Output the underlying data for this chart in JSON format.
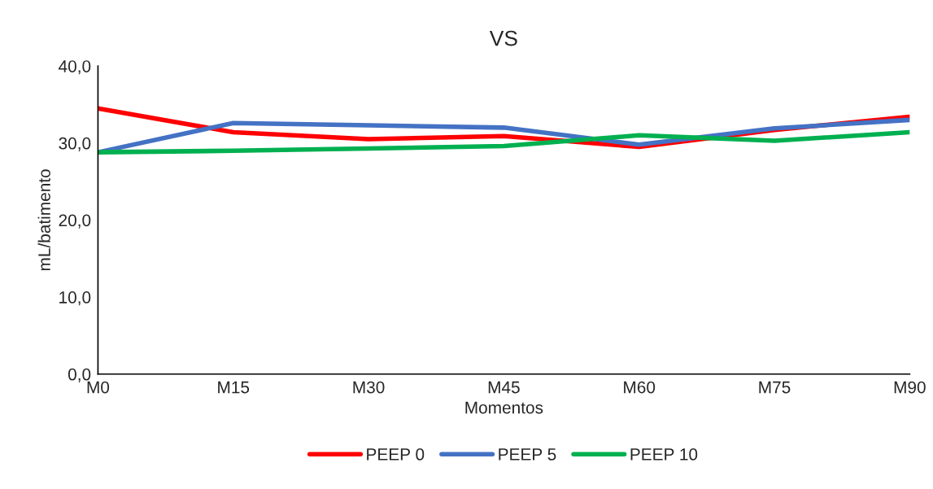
{
  "chart_data": {
    "type": "line",
    "title": "VS",
    "xlabel": "Momentos",
    "ylabel": "mL/batimento",
    "categories": [
      "M0",
      "M15",
      "M30",
      "M45",
      "M60",
      "M75",
      "M90"
    ],
    "series": [
      {
        "name": "PEEP 0",
        "color": "#ff0000",
        "values": [
          34.5,
          31.4,
          30.5,
          30.9,
          29.5,
          31.7,
          33.4
        ]
      },
      {
        "name": "PEEP 5",
        "color": "#4472c4",
        "values": [
          28.8,
          32.6,
          32.3,
          32.0,
          29.8,
          31.9,
          33.0
        ]
      },
      {
        "name": "PEEP 10",
        "color": "#00b050",
        "values": [
          28.8,
          29.0,
          29.3,
          29.6,
          31.0,
          30.3,
          31.4
        ]
      }
    ],
    "ylim": [
      0,
      40
    ],
    "yticks": [
      {
        "value": 0,
        "label": "0,0"
      },
      {
        "value": 10,
        "label": "10,0"
      },
      {
        "value": 20,
        "label": "20,0"
      },
      {
        "value": 30,
        "label": "30,0"
      },
      {
        "value": 40,
        "label": "40,0"
      }
    ],
    "grid": false,
    "legend": "bottom",
    "marker": "none",
    "line_style": "solid"
  }
}
